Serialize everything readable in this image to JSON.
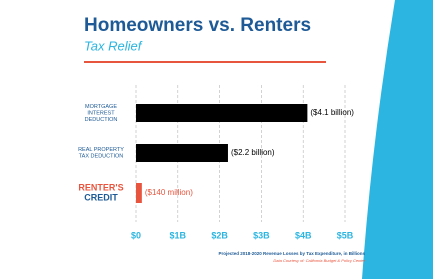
{
  "chart_data": {
    "type": "barh",
    "title": "Homeowners vs. Renters",
    "subtitle": "Tax Relief",
    "categories": [
      [
        "MORTGAGE",
        "INTEREST",
        "DEDUCTION"
      ],
      [
        "REAL PROPERTY",
        "TAX DEDUCTION"
      ],
      [
        "RENTER'S",
        "CREDIT"
      ]
    ],
    "values": [
      4.1,
      2.2,
      0.14
    ],
    "value_labels": [
      "($4.1 billion)",
      "($2.2 billion)",
      "($140 million)"
    ],
    "colors": [
      "#000000",
      "#000000",
      "#e8553e"
    ],
    "xlim": [
      0,
      5
    ],
    "xticks": [
      {
        "value": 0,
        "label": "$0"
      },
      {
        "value": 1,
        "label": "$1B"
      },
      {
        "value": 2,
        "label": "$2B"
      },
      {
        "value": 3,
        "label": "$3B"
      },
      {
        "value": 4,
        "label": "$4B"
      },
      {
        "value": 5,
        "label": "$5B"
      }
    ],
    "grid": true,
    "footnote": "Projected 2018-2020 Revenue Losses by Tax Expenditure, in Billions",
    "source": "Data Courtesy of: California Budget & Policy Center"
  }
}
